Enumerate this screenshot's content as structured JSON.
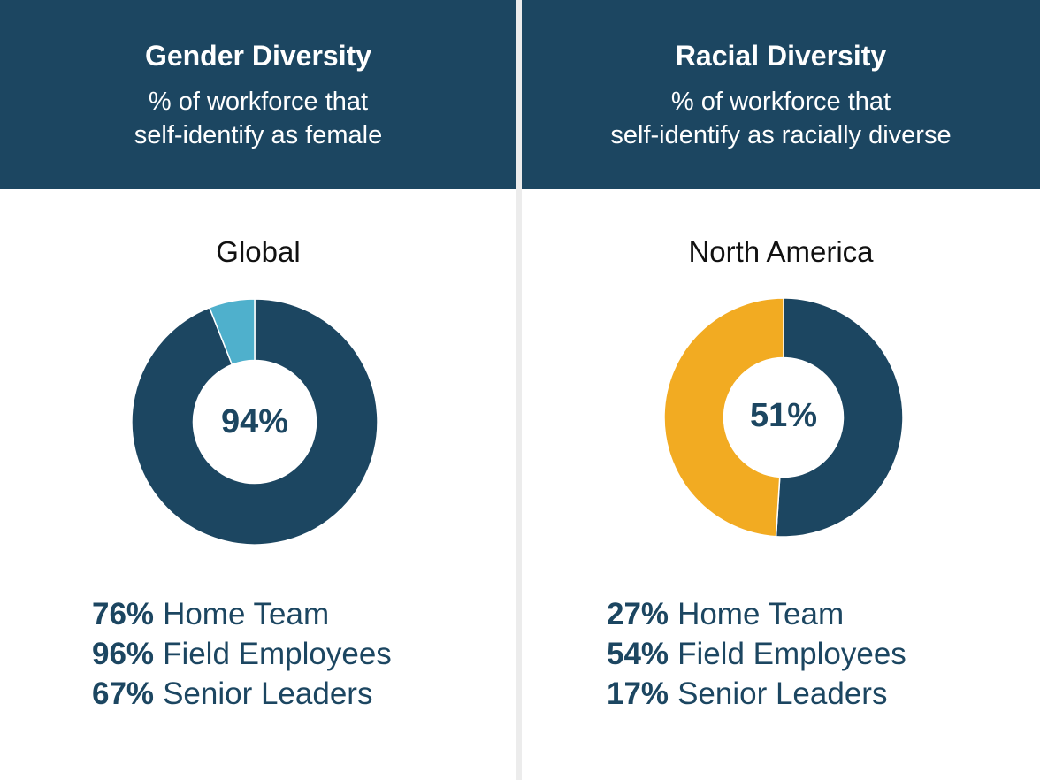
{
  "colors": {
    "navy": "#1c4661",
    "light_blue": "#4fb0cc",
    "gold": "#f2ab22",
    "header_bg": "#1c4661"
  },
  "panels": [
    {
      "header": {
        "title": "Gender Diversity",
        "subtitle_lines": [
          "% of workforce that",
          "self-identify as female"
        ]
      },
      "region": "Global",
      "center_label": "94%",
      "stats": [
        {
          "value": "76%",
          "label": "Home Team"
        },
        {
          "value": "96%",
          "label": "Field Employees"
        },
        {
          "value": "67%",
          "label": "Senior Leaders"
        }
      ]
    },
    {
      "header": {
        "title": "Racial Diversity",
        "subtitle_lines": [
          "% of workforce that",
          "self-identify as racially diverse"
        ]
      },
      "region": "North America",
      "center_label": "51%",
      "stats": [
        {
          "value": "27%",
          "label": "Home Team"
        },
        {
          "value": "54%",
          "label": "Field Employees"
        },
        {
          "value": "17%",
          "label": "Senior Leaders"
        }
      ]
    }
  ],
  "chart_data": [
    {
      "type": "pie",
      "title": "Global",
      "slices": [
        {
          "value": 94,
          "color": "#1c4661"
        },
        {
          "value": 6,
          "color": "#4fb0cc"
        }
      ]
    },
    {
      "type": "pie",
      "title": "North America",
      "slices": [
        {
          "value": 51,
          "color": "#1c4661"
        },
        {
          "value": 49,
          "color": "#f2ab22"
        }
      ]
    }
  ]
}
